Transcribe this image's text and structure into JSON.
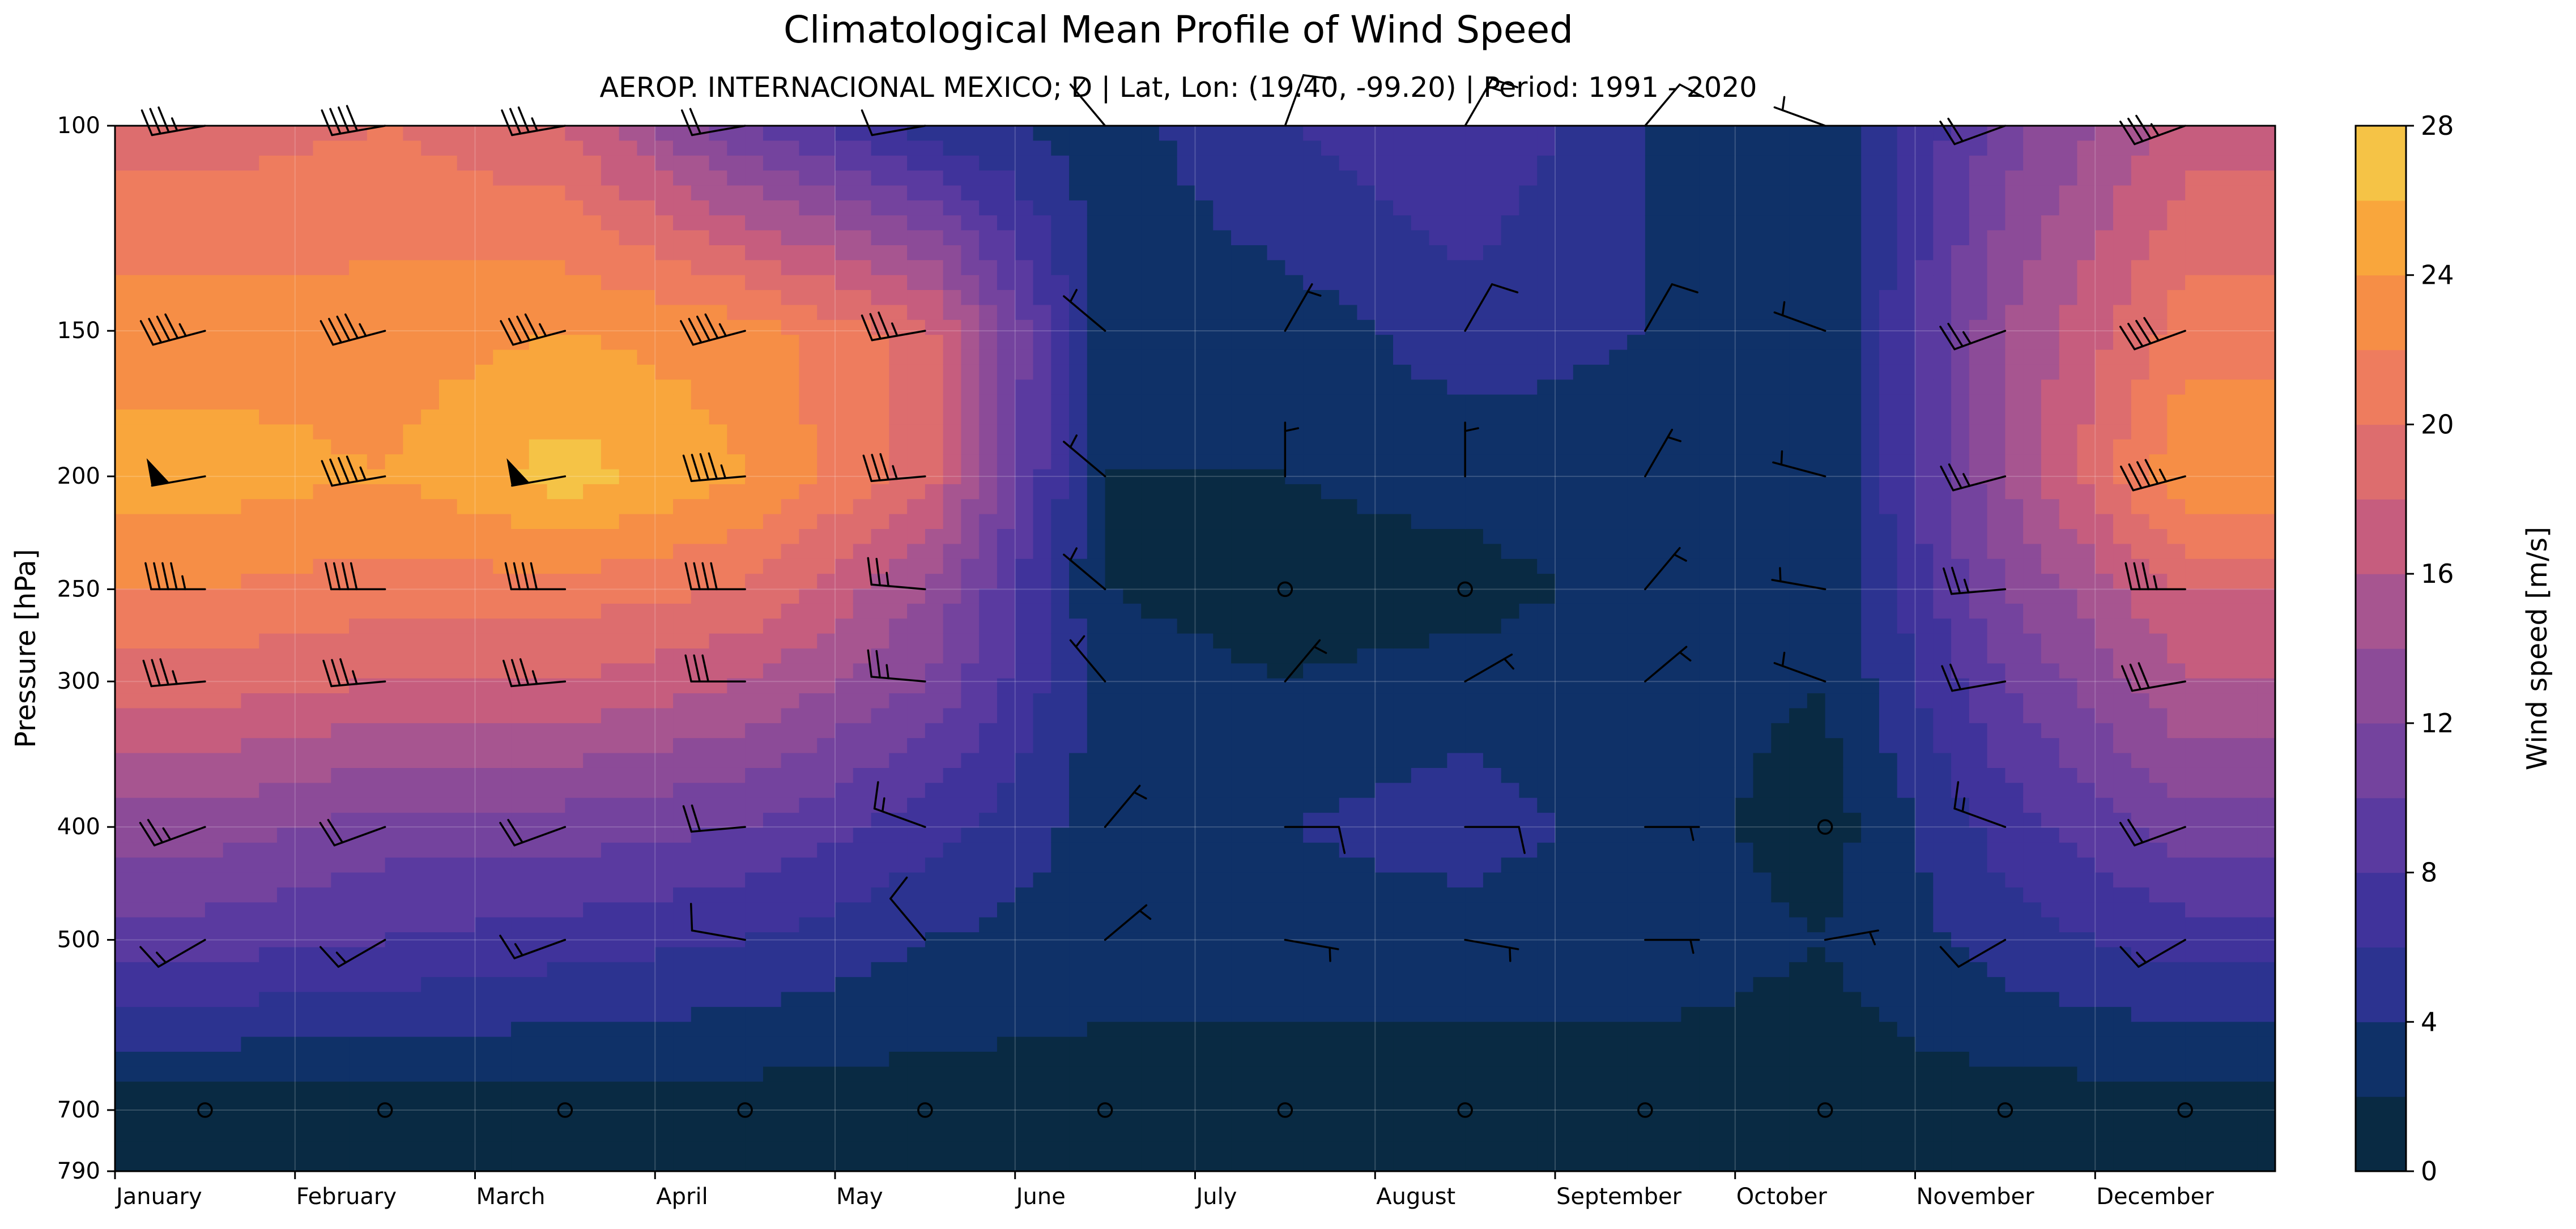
{
  "chart_data": {
    "type": "heatmap",
    "title": "Climatological Mean Profile of Wind Speed",
    "subtitle": "AEROP. INTERNACIONAL MEXICO; D   |   Lat, Lon: (19.40, -99.20)   |   Period: 1991 - 2020",
    "xlabel": "",
    "ylabel": "Pressure [hPa]",
    "y_scale": "log",
    "y_inverted": true,
    "ylim": [
      790,
      100
    ],
    "months": [
      "January",
      "February",
      "March",
      "April",
      "May",
      "June",
      "July",
      "August",
      "September",
      "October",
      "November",
      "December"
    ],
    "pressure_levels": [
      100,
      150,
      200,
      250,
      300,
      400,
      500,
      700
    ],
    "y_ticks": [
      100,
      150,
      200,
      250,
      300,
      400,
      500,
      700,
      790
    ],
    "wind_speed_ms": [
      [
        19,
        20,
        18,
        10,
        5,
        3,
        6,
        8,
        4,
        2,
        11,
        17
      ],
      [
        23,
        23,
        24,
        23,
        19,
        3,
        3,
        5,
        4,
        2,
        14,
        21
      ],
      [
        25,
        24,
        27,
        24,
        19,
        2,
        2,
        3,
        3,
        2,
        14,
        24
      ],
      [
        22,
        21,
        21,
        20,
        14,
        2,
        1,
        1,
        3,
        2,
        12,
        18
      ],
      [
        19,
        18,
        18,
        16,
        12,
        3,
        2,
        3,
        3,
        2,
        10,
        16
      ],
      [
        13,
        11,
        11,
        10,
        7,
        3,
        4,
        5,
        3,
        1,
        7,
        11
      ],
      [
        9,
        8,
        7,
        6,
        4,
        3,
        3,
        3,
        3,
        2,
        5,
        7
      ],
      [
        1,
        1,
        1,
        1,
        1,
        1,
        1,
        1,
        1,
        1,
        1,
        1
      ]
    ],
    "wind_direction_deg": [
      [
        260,
        260,
        260,
        260,
        260,
        320,
        20,
        30,
        40,
        290,
        250,
        250
      ],
      [
        255,
        255,
        255,
        255,
        260,
        310,
        30,
        30,
        30,
        290,
        250,
        250
      ],
      [
        260,
        260,
        260,
        265,
        265,
        310,
        360,
        360,
        30,
        285,
        255,
        255
      ],
      [
        270,
        270,
        270,
        270,
        275,
        310,
        10,
        30,
        40,
        280,
        265,
        270
      ],
      [
        265,
        265,
        265,
        270,
        275,
        320,
        40,
        60,
        50,
        290,
        260,
        260
      ],
      [
        250,
        250,
        250,
        265,
        290,
        40,
        90,
        90,
        90,
        0,
        290,
        250
      ],
      [
        240,
        240,
        250,
        280,
        320,
        50,
        100,
        100,
        90,
        80,
        240,
        240
      ],
      [
        0,
        0,
        240,
        240,
        260,
        0,
        0,
        0,
        0,
        210,
        0,
        0
      ]
    ],
    "colorbar": {
      "label": "Wind speed [m/s]",
      "ticks": [
        0,
        4,
        8,
        12,
        16,
        20,
        24,
        28
      ],
      "levels": [
        0,
        2,
        4,
        6,
        8,
        10,
        12,
        14,
        16,
        18,
        20,
        22,
        24,
        26,
        28
      ],
      "colors": [
        "#092a43",
        "#0f3168",
        "#2c3390",
        "#40339b",
        "#5a3aa0",
        "#74439e",
        "#8c4b98",
        "#a75590",
        "#c65d7e",
        "#dd6d6e",
        "#ee7c5e",
        "#f68e46",
        "#f9a63c",
        "#f5c346",
        "#efe54d"
      ]
    },
    "grid": true,
    "contour_line_color": "#7a6a50"
  }
}
